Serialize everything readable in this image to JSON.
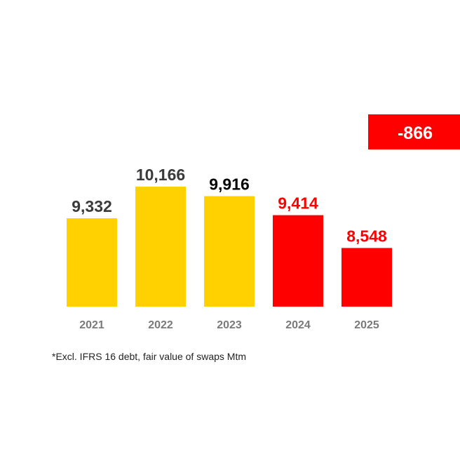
{
  "chart_data": {
    "type": "bar",
    "categories": [
      "2021",
      "2022",
      "2023",
      "2024",
      "2025"
    ],
    "values": [
      9332,
      10166,
      9916,
      9414,
      8548
    ],
    "value_labels": [
      "9,332",
      "10,166",
      "9,916",
      "9,414",
      "8,548"
    ],
    "colors": [
      "#FFD100",
      "#FFD100",
      "#FFD100",
      "#FF0000",
      "#FF0000"
    ],
    "label_colors": [
      "#3a3a3a",
      "#3a3a3a",
      "#000000",
      "#FF0000",
      "#FF0000"
    ],
    "ylim": [
      7000,
      10500
    ],
    "annotation": "-866",
    "annotation_color": "#FF0000",
    "footnote": "*Excl. IFRS 16 debt, fair value of swaps Mtm"
  }
}
